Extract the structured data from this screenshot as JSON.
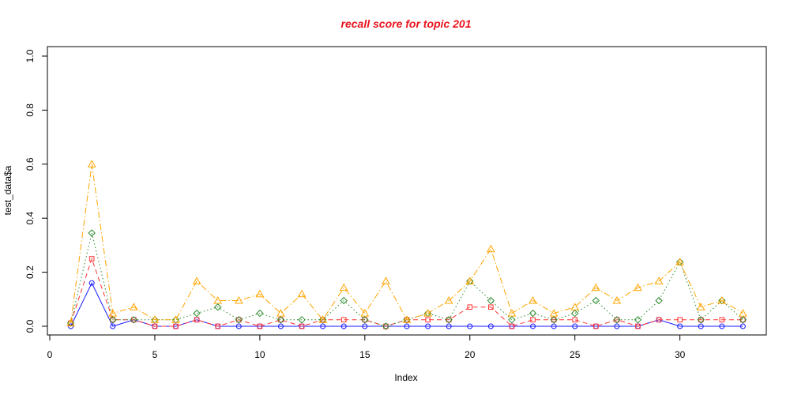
{
  "chart_data": {
    "type": "line",
    "title": "recall score for topic 201",
    "title_color": "#e8141c",
    "xlabel": "Index",
    "ylabel": "test_data$a",
    "xlim": [
      0,
      34
    ],
    "ylim": [
      0,
      1.0
    ],
    "x_ticks": [
      0,
      5,
      10,
      15,
      20,
      25,
      30
    ],
    "y_ticks": [
      "0.0",
      "0.2",
      "0.4",
      "0.6",
      "0.8",
      "1.0"
    ],
    "grid": false,
    "legend": "none",
    "x": [
      1,
      2,
      3,
      4,
      5,
      6,
      7,
      8,
      9,
      10,
      11,
      12,
      13,
      14,
      15,
      16,
      17,
      18,
      19,
      20,
      21,
      22,
      23,
      24,
      25,
      26,
      27,
      28,
      29,
      30,
      31,
      32,
      33
    ],
    "series": [
      {
        "color": "#1a1aff",
        "marker": "circle",
        "line": "solid",
        "values": [
          0.0,
          0.16,
          0.0,
          0.024,
          0.0,
          0.0,
          0.024,
          0.0,
          0.0,
          0.0,
          0.0,
          0.0,
          0.0,
          0.0,
          0.0,
          0.0,
          0.0,
          0.0,
          0.0,
          0.0,
          0.0,
          0.0,
          0.0,
          0.0,
          0.0,
          0.0,
          0.0,
          0.0,
          0.024,
          0.0,
          0.0,
          0.0,
          0.0
        ]
      },
      {
        "color": "#ff3333",
        "marker": "square",
        "line": "dashed",
        "values": [
          0.012,
          0.25,
          0.024,
          0.024,
          0.0,
          0.0,
          0.024,
          0.0,
          0.024,
          0.0,
          0.024,
          0.0,
          0.024,
          0.024,
          0.024,
          0.0,
          0.024,
          0.024,
          0.024,
          0.071,
          0.071,
          0.0,
          0.024,
          0.024,
          0.024,
          0.0,
          0.024,
          0.0,
          0.024,
          0.024,
          0.024,
          0.024,
          0.024
        ]
      },
      {
        "color": "#2e8b2e",
        "marker": "diamond",
        "line": "dotted",
        "values": [
          0.012,
          0.345,
          0.024,
          0.024,
          0.024,
          0.024,
          0.048,
          0.071,
          0.024,
          0.048,
          0.024,
          0.024,
          0.024,
          0.095,
          0.024,
          0.0,
          0.024,
          0.048,
          0.024,
          0.167,
          0.095,
          0.024,
          0.048,
          0.024,
          0.048,
          0.095,
          0.024,
          0.024,
          0.095,
          0.238,
          0.024,
          0.095,
          0.024
        ]
      },
      {
        "color": "#ffa500",
        "marker": "triangle",
        "line": "dashdot",
        "values": [
          0.012,
          0.6,
          0.048,
          0.071,
          0.024,
          0.024,
          0.167,
          0.095,
          0.095,
          0.119,
          0.048,
          0.119,
          0.024,
          0.143,
          0.048,
          0.167,
          0.024,
          0.048,
          0.095,
          0.167,
          0.286,
          0.048,
          0.095,
          0.048,
          0.071,
          0.143,
          0.095,
          0.143,
          0.167,
          0.238,
          0.071,
          0.095,
          0.048
        ]
      }
    ]
  }
}
